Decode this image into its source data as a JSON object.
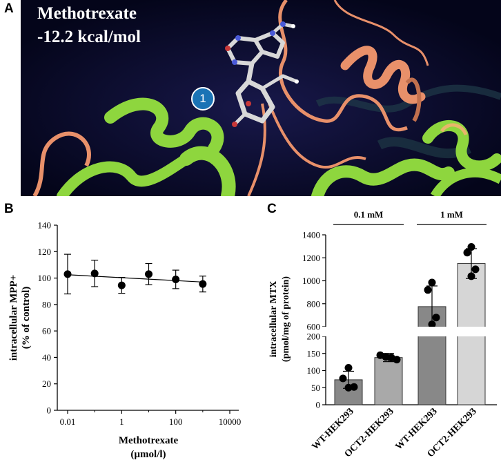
{
  "panel_labels": {
    "a": "A",
    "b": "B",
    "c": "C"
  },
  "panel_a": {
    "compound": "Methotrexate",
    "binding_energy": "-12.2 kcal/mol",
    "site_badge": "1"
  },
  "colors": {
    "background_a": "#080a26",
    "ribbon_green": "#8ed63e",
    "ribbon_orange": "#e8906a",
    "scatter_marker": "#000000",
    "bar_dark": "#888888",
    "bar_medium": "#a9a9a9",
    "bar_light": "#d6d6d6"
  },
  "chart_data": [
    {
      "type": "scatter",
      "panel": "B",
      "xlabel": [
        "Methotrexate",
        "(µmol/l)"
      ],
      "ylabel": [
        "intracellular MPP+",
        "(% of control)"
      ],
      "x_scale": "log",
      "xlim": [
        0.01,
        10000
      ],
      "ylim": [
        0,
        140
      ],
      "x_ticks": [
        0.01,
        1,
        100,
        10000
      ],
      "x_tick_labels": [
        "0.01",
        "1",
        "100",
        "10000"
      ],
      "y_ticks": [
        0,
        20,
        40,
        60,
        80,
        100,
        120,
        140
      ],
      "points": [
        {
          "x": 0.01,
          "y": 103,
          "err": 15
        },
        {
          "x": 0.1,
          "y": 103.5,
          "err": 10
        },
        {
          "x": 1,
          "y": 94.5,
          "err": 6
        },
        {
          "x": 10,
          "y": 103,
          "err": 8
        },
        {
          "x": 100,
          "y": 99,
          "err": 7
        },
        {
          "x": 1000,
          "y": 95.5,
          "err": 6
        }
      ],
      "fit_line": {
        "x": [
          0.01,
          1000
        ],
        "y": [
          102.5,
          97
        ]
      },
      "grid": false
    },
    {
      "type": "bar",
      "panel": "C",
      "categories": [
        "WT-HEK293",
        "OCT2-HEK293",
        "WT-HEK293",
        "OCT2-HEK293"
      ],
      "values": [
        73,
        138,
        775,
        1150
      ],
      "errors": [
        25,
        12,
        180,
        130
      ],
      "replicates": [
        [
          108,
          77,
          50,
          52
        ],
        [
          145,
          140,
          138,
          132
        ],
        [
          985,
          920,
          680,
          620
        ],
        [
          1295,
          1245,
          1100,
          1040
        ]
      ],
      "ylabel": [
        "intracellular MTX",
        "(pmol/mg of protein)"
      ],
      "y_axis_break": {
        "lower": [
          0,
          200
        ],
        "upper": [
          600,
          1400
        ]
      },
      "y_ticks_lower": [
        0,
        50,
        100,
        150,
        200
      ],
      "y_ticks_upper": [
        600,
        800,
        1000,
        1200,
        1400
      ],
      "groups": [
        {
          "label": "0.1 mM",
          "categories": [
            0,
            1
          ]
        },
        {
          "label": "1 mM",
          "categories": [
            2,
            3
          ]
        }
      ],
      "grid": false
    }
  ]
}
